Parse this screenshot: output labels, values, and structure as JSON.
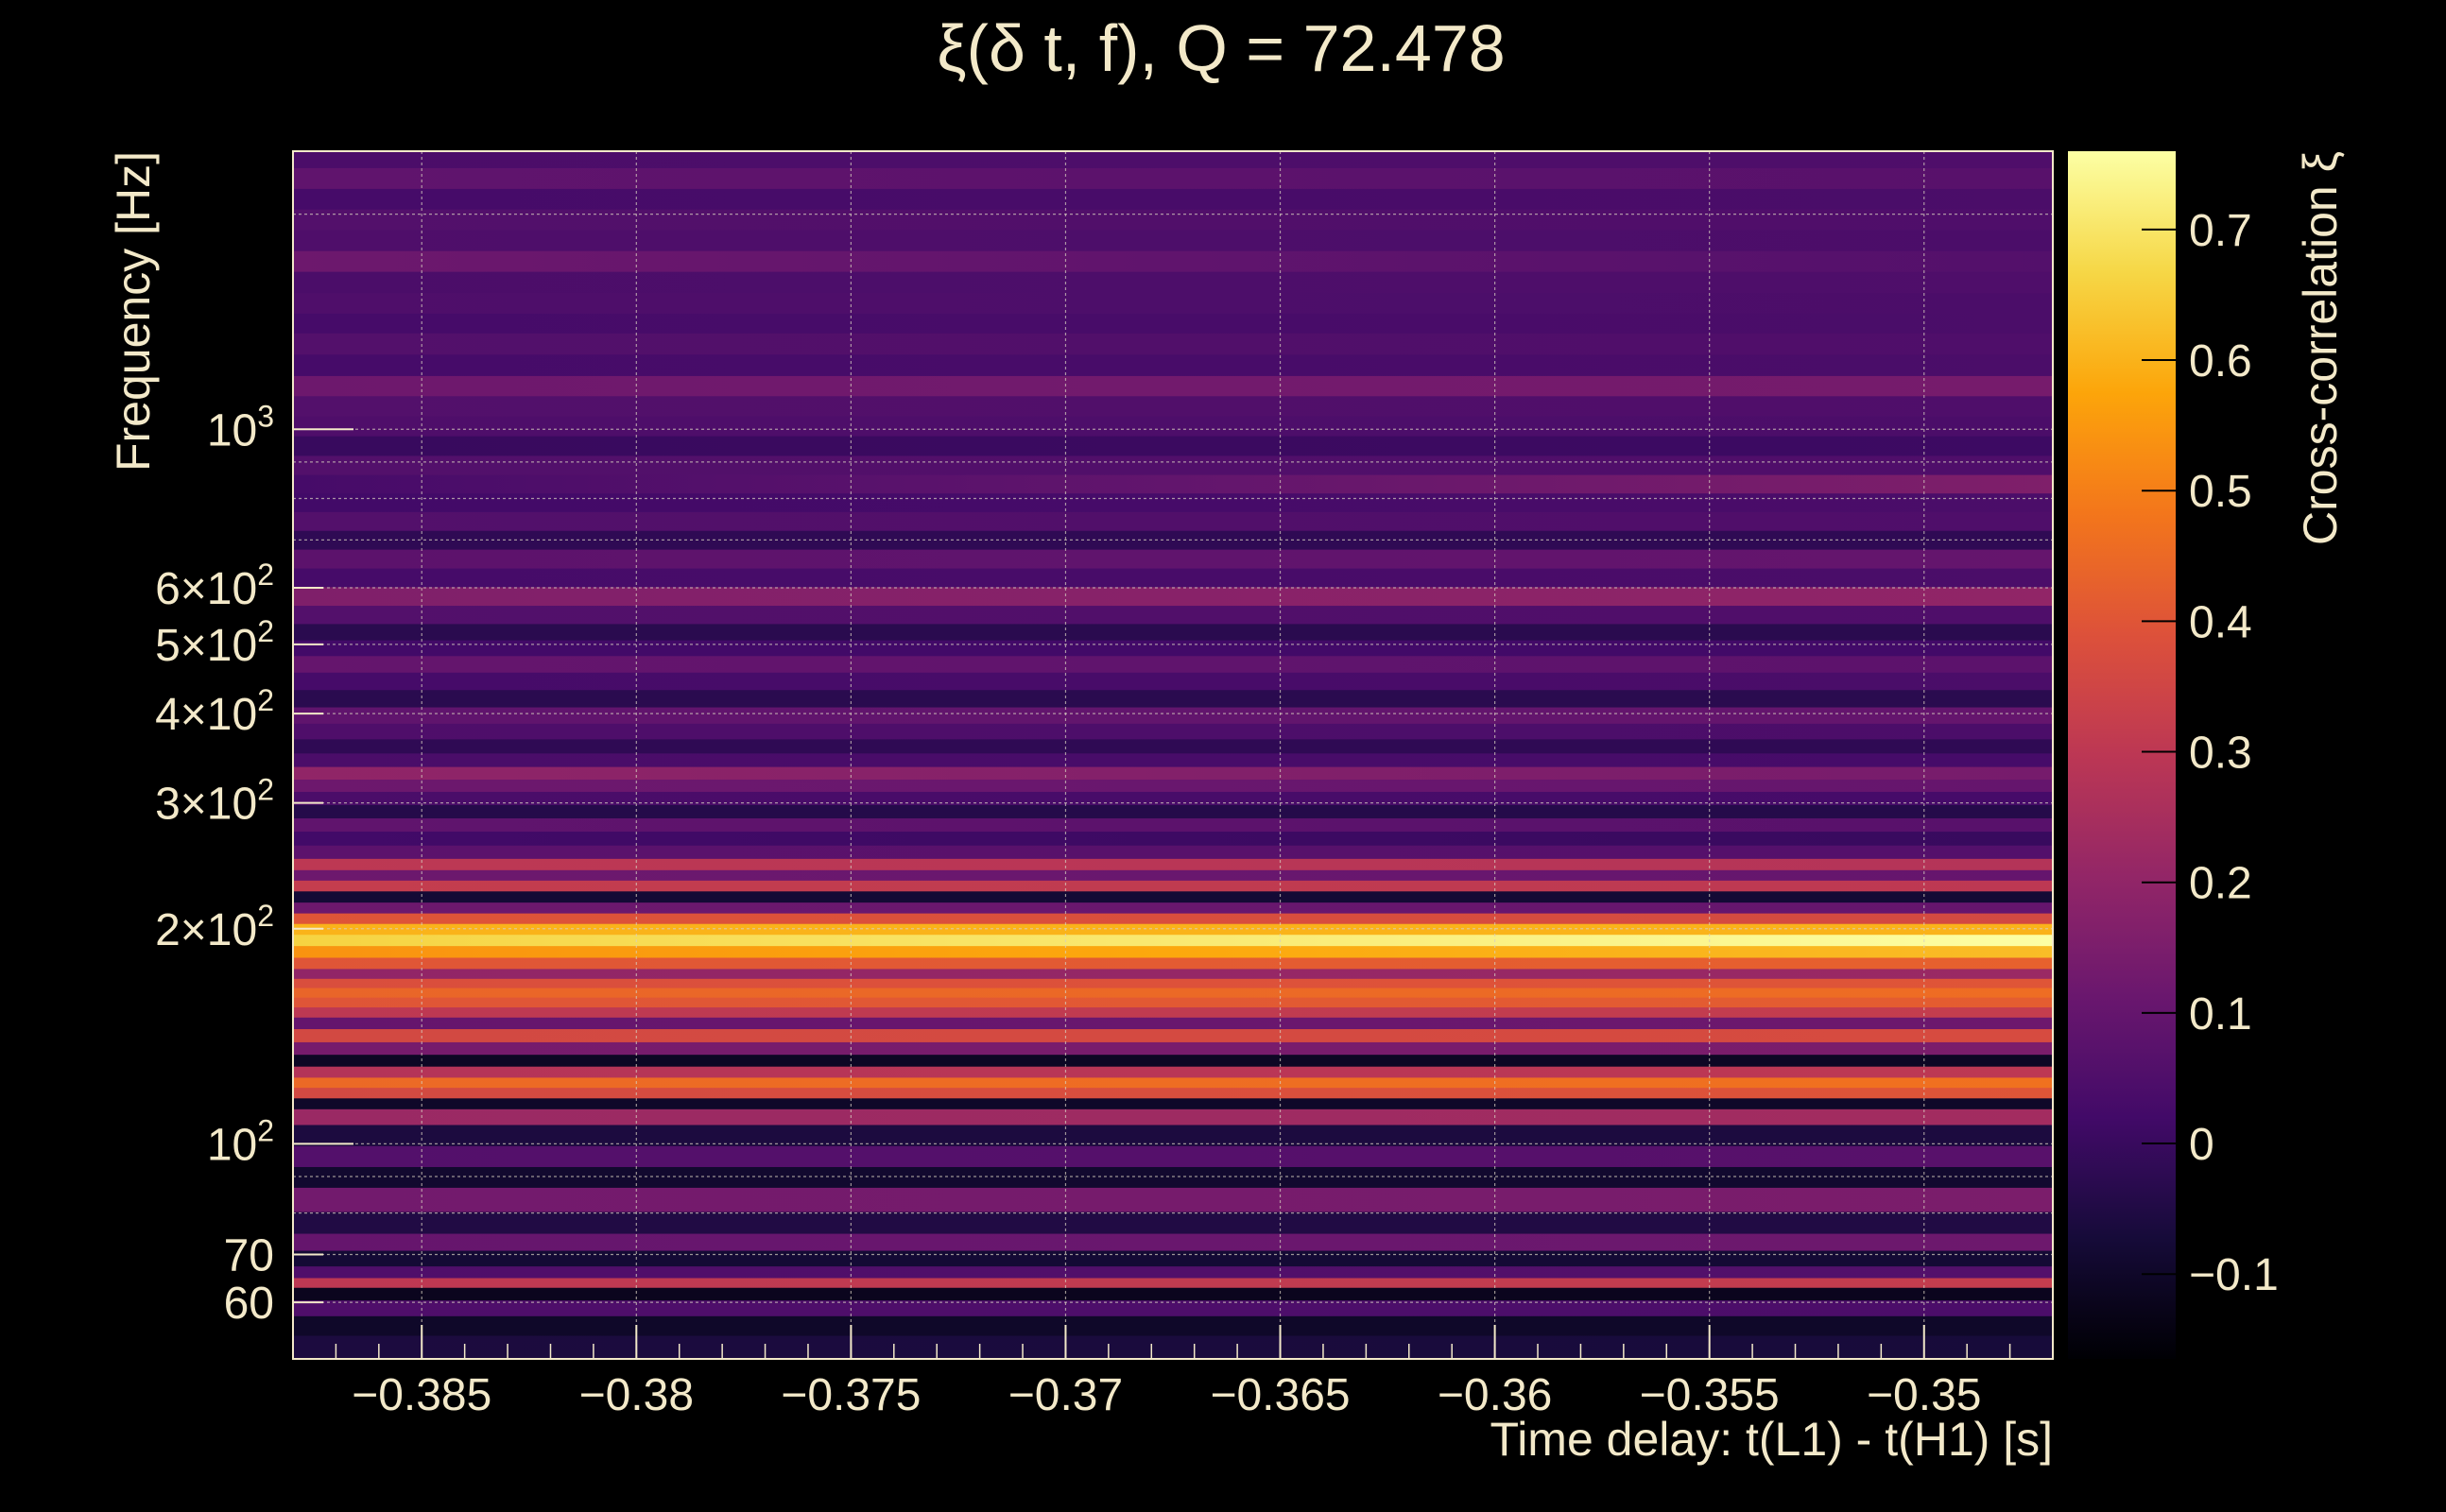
{
  "chart_data": {
    "type": "heatmap",
    "title": "ξ(δ t, f), Q = 72.478",
    "xlabel": "Time delay: t(L1) - t(H1) [s]",
    "ylabel": "Frequency [Hz]",
    "colorbar_label": "Cross-correlation ξ",
    "x_range": [
      -0.388,
      -0.347
    ],
    "y_range": [
      50,
      2450
    ],
    "y_scale": "log",
    "grid": true,
    "colormap": "inferno",
    "colorbar_range": [
      -0.165,
      0.76
    ],
    "x_ticks": [
      {
        "value": -0.385,
        "label": "−0.385"
      },
      {
        "value": -0.38,
        "label": "−0.38"
      },
      {
        "value": -0.375,
        "label": "−0.375"
      },
      {
        "value": -0.37,
        "label": "−0.37"
      },
      {
        "value": -0.365,
        "label": "−0.365"
      },
      {
        "value": -0.36,
        "label": "−0.36"
      },
      {
        "value": -0.355,
        "label": "−0.355"
      },
      {
        "value": -0.35,
        "label": "−0.35"
      }
    ],
    "y_ticks": [
      {
        "value": 1000,
        "base": "10",
        "exp": "3"
      },
      {
        "value": 600,
        "base": "6×10",
        "exp": "2"
      },
      {
        "value": 500,
        "base": "5×10",
        "exp": "2"
      },
      {
        "value": 400,
        "base": "4×10",
        "exp": "2"
      },
      {
        "value": 300,
        "base": "3×10",
        "exp": "2"
      },
      {
        "value": 200,
        "base": "2×10",
        "exp": "2"
      },
      {
        "value": 100,
        "base": "10",
        "exp": "2"
      },
      {
        "value": 70,
        "base": "70",
        "exp": ""
      },
      {
        "value": 60,
        "base": "60",
        "exp": ""
      }
    ],
    "colorbar_ticks": [
      {
        "value": 0.7,
        "label": "0.7"
      },
      {
        "value": 0.6,
        "label": "0.6"
      },
      {
        "value": 0.5,
        "label": "0.5"
      },
      {
        "value": 0.4,
        "label": "0.4"
      },
      {
        "value": 0.3,
        "label": "0.3"
      },
      {
        "value": 0.2,
        "label": "0.2"
      },
      {
        "value": 0.1,
        "label": "0.1"
      },
      {
        "value": 0,
        "label": "0"
      },
      {
        "value": -0.1,
        "label": "−0.1"
      }
    ],
    "bands": [
      {
        "f": 52,
        "v_start": -0.06,
        "v_end": -0.07
      },
      {
        "f": 56,
        "v_start": -0.1,
        "v_end": -0.1
      },
      {
        "f": 59,
        "v_start": 0.05,
        "v_end": 0.04
      },
      {
        "f": 62,
        "v_start": -0.12,
        "v_end": -0.12
      },
      {
        "f": 64,
        "v_start": 0.3,
        "v_end": 0.32
      },
      {
        "f": 66,
        "v_start": 0.05,
        "v_end": 0.06
      },
      {
        "f": 69,
        "v_start": -0.08,
        "v_end": -0.08
      },
      {
        "f": 73,
        "v_start": 0.1,
        "v_end": 0.12
      },
      {
        "f": 77,
        "v_start": -0.05,
        "v_end": -0.05
      },
      {
        "f": 84,
        "v_start": 0.13,
        "v_end": 0.15
      },
      {
        "f": 90,
        "v_start": -0.09,
        "v_end": -0.09
      },
      {
        "f": 96,
        "v_start": 0.06,
        "v_end": 0.07
      },
      {
        "f": 103,
        "v_start": -0.06,
        "v_end": -0.06
      },
      {
        "f": 110,
        "v_start": 0.22,
        "v_end": 0.24
      },
      {
        "f": 114,
        "v_start": -0.1,
        "v_end": -0.1
      },
      {
        "f": 118,
        "v_start": 0.36,
        "v_end": 0.4
      },
      {
        "f": 122,
        "v_start": 0.45,
        "v_end": 0.47
      },
      {
        "f": 126,
        "v_start": 0.28,
        "v_end": 0.3
      },
      {
        "f": 131,
        "v_start": -0.11,
        "v_end": -0.11
      },
      {
        "f": 136,
        "v_start": 0.14,
        "v_end": 0.15
      },
      {
        "f": 142,
        "v_start": 0.36,
        "v_end": 0.37
      },
      {
        "f": 148,
        "v_start": 0.1,
        "v_end": 0.12
      },
      {
        "f": 153,
        "v_start": 0.3,
        "v_end": 0.32
      },
      {
        "f": 158,
        "v_start": 0.4,
        "v_end": 0.42
      },
      {
        "f": 163,
        "v_start": 0.44,
        "v_end": 0.46
      },
      {
        "f": 168,
        "v_start": 0.38,
        "v_end": 0.4
      },
      {
        "f": 173,
        "v_start": 0.2,
        "v_end": 0.22
      },
      {
        "f": 179,
        "v_start": 0.4,
        "v_end": 0.43
      },
      {
        "f": 186,
        "v_start": 0.54,
        "v_end": 0.62
      },
      {
        "f": 193,
        "v_start": 0.66,
        "v_end": 0.76
      },
      {
        "f": 200,
        "v_start": 0.6,
        "v_end": 0.6
      },
      {
        "f": 207,
        "v_start": 0.4,
        "v_end": 0.36
      },
      {
        "f": 214,
        "v_start": 0.12,
        "v_end": 0.1
      },
      {
        "f": 222,
        "v_start": -0.08,
        "v_end": -0.08
      },
      {
        "f": 230,
        "v_start": 0.32,
        "v_end": 0.3
      },
      {
        "f": 238,
        "v_start": 0.12,
        "v_end": 0.1
      },
      {
        "f": 246,
        "v_start": 0.3,
        "v_end": 0.28
      },
      {
        "f": 256,
        "v_start": 0.08,
        "v_end": 0.06
      },
      {
        "f": 268,
        "v_start": 0.02,
        "v_end": 0.0
      },
      {
        "f": 280,
        "v_start": 0.09,
        "v_end": 0.07
      },
      {
        "f": 292,
        "v_start": -0.04,
        "v_end": -0.04
      },
      {
        "f": 305,
        "v_start": 0.04,
        "v_end": 0.03
      },
      {
        "f": 318,
        "v_start": 0.12,
        "v_end": 0.1
      },
      {
        "f": 330,
        "v_start": 0.2,
        "v_end": 0.14
      },
      {
        "f": 345,
        "v_start": 0.04,
        "v_end": 0.03
      },
      {
        "f": 360,
        "v_start": -0.02,
        "v_end": -0.02
      },
      {
        "f": 378,
        "v_start": 0.05,
        "v_end": 0.04
      },
      {
        "f": 398,
        "v_start": 0.09,
        "v_end": 0.1
      },
      {
        "f": 420,
        "v_start": -0.03,
        "v_end": -0.03
      },
      {
        "f": 445,
        "v_start": 0.03,
        "v_end": 0.04
      },
      {
        "f": 470,
        "v_start": 0.1,
        "v_end": 0.08
      },
      {
        "f": 495,
        "v_start": 0.02,
        "v_end": 0.02
      },
      {
        "f": 520,
        "v_start": -0.03,
        "v_end": -0.03
      },
      {
        "f": 550,
        "v_start": 0.06,
        "v_end": 0.05
      },
      {
        "f": 585,
        "v_start": 0.16,
        "v_end": 0.2
      },
      {
        "f": 620,
        "v_start": 0.03,
        "v_end": 0.04
      },
      {
        "f": 660,
        "v_start": 0.08,
        "v_end": 0.1
      },
      {
        "f": 700,
        "v_start": -0.02,
        "v_end": -0.02
      },
      {
        "f": 745,
        "v_start": 0.06,
        "v_end": 0.05
      },
      {
        "f": 790,
        "v_start": 0.02,
        "v_end": 0.04
      },
      {
        "f": 840,
        "v_start": 0.03,
        "v_end": 0.16
      },
      {
        "f": 890,
        "v_start": 0.06,
        "v_end": 0.05
      },
      {
        "f": 950,
        "v_start": 0.0,
        "v_end": 0.01
      },
      {
        "f": 1010,
        "v_start": 0.05,
        "v_end": 0.04
      },
      {
        "f": 1080,
        "v_start": 0.06,
        "v_end": 0.05
      },
      {
        "f": 1150,
        "v_start": 0.12,
        "v_end": 0.14
      },
      {
        "f": 1230,
        "v_start": 0.03,
        "v_end": 0.04
      },
      {
        "f": 1320,
        "v_start": 0.06,
        "v_end": 0.05
      },
      {
        "f": 1410,
        "v_start": 0.03,
        "v_end": 0.04
      },
      {
        "f": 1500,
        "v_start": 0.05,
        "v_end": 0.04
      },
      {
        "f": 1610,
        "v_start": 0.04,
        "v_end": 0.05
      },
      {
        "f": 1720,
        "v_start": 0.12,
        "v_end": 0.06
      },
      {
        "f": 1840,
        "v_start": 0.05,
        "v_end": 0.04
      },
      {
        "f": 1970,
        "v_start": 0.06,
        "v_end": 0.05
      },
      {
        "f": 2100,
        "v_start": 0.03,
        "v_end": 0.04
      },
      {
        "f": 2250,
        "v_start": 0.09,
        "v_end": 0.07
      },
      {
        "f": 2400,
        "v_start": 0.04,
        "v_end": 0.05
      }
    ]
  }
}
